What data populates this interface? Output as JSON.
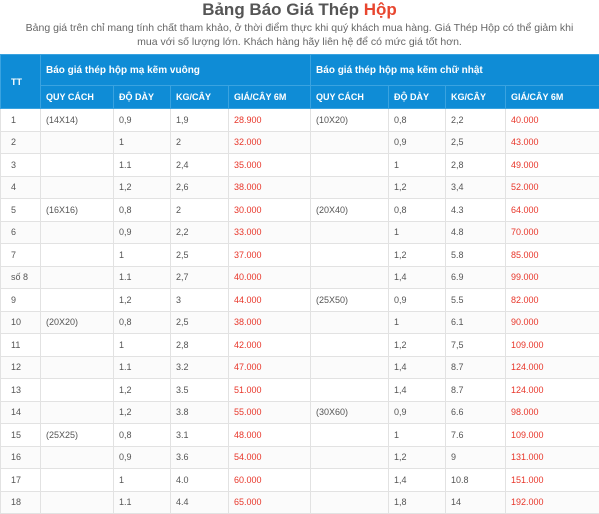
{
  "page": {
    "title_main": "Bảng Báo Giá Thép",
    "title_highlight": "Hộp",
    "note": "Bảng giá trên chỉ mang tính chất tham khảo, ở thời điểm thực khi quý khách mua hàng. Giá Thép Hộp có thể giảm khi mua với số lượng lớn. Khách hàng hãy liên hệ để có mức giá tốt hơn."
  },
  "table": {
    "tt_header": "TT",
    "group_square": "Báo giá thép hộp mạ kẽm vuông",
    "group_rect": "Báo giá thép hộp mạ kẽm chữ nhật",
    "columns": [
      "QUY CÁCH",
      "ĐỘ DÀY",
      "KG/CÂY",
      "GIÁ/CÂY 6M",
      "QUY CÁCH",
      "ĐỘ DÀY",
      "KG/CÂY",
      "GIÁ/CÂY 6M"
    ],
    "rows": [
      [
        "1",
        "(14X14)",
        "0,9",
        "1,9",
        "28.900",
        "(10X20)",
        "0,8",
        "2,2",
        "40.000"
      ],
      [
        "2",
        "",
        "1",
        "2",
        "32.000",
        "",
        "0,9",
        "2,5",
        "43.000"
      ],
      [
        "3",
        "",
        "1.1",
        "2,4",
        "35.000",
        "",
        "1",
        "2,8",
        "49.000"
      ],
      [
        "4",
        "",
        "1,2",
        "2,6",
        "38.000",
        "",
        "1,2",
        "3,4",
        "52.000"
      ],
      [
        "5",
        "(16X16)",
        "0,8",
        "2",
        "30.000",
        "(20X40)",
        "0,8",
        "4.3",
        "64.000"
      ],
      [
        "6",
        "",
        "0,9",
        "2,2",
        "33.000",
        "",
        "1",
        "4.8",
        "70.000"
      ],
      [
        "7",
        "",
        "1",
        "2,5",
        "37.000",
        "",
        "1,2",
        "5.8",
        "85.000"
      ],
      [
        "số 8",
        "",
        "1.1",
        "2,7",
        "40.000",
        "",
        "1,4",
        "6.9",
        "99.000"
      ],
      [
        "9",
        "",
        "1,2",
        "3",
        "44.000",
        "(25X50)",
        "0,9",
        "5.5",
        "82.000"
      ],
      [
        "10",
        "(20X20)",
        "0,8",
        "2,5",
        "38.000",
        "",
        "1",
        "6.1",
        "90.000"
      ],
      [
        "11",
        "",
        "1",
        "2,8",
        "42.000",
        "",
        "1,2",
        "7,5",
        "109.000"
      ],
      [
        "12",
        "",
        "1.1",
        "3.2",
        "47.000",
        "",
        "1,4",
        "8.7",
        "124.000"
      ],
      [
        "13",
        "",
        "1,2",
        "3.5",
        "51.000",
        "",
        "1,4",
        "8.7",
        "124.000"
      ],
      [
        "14",
        "",
        "1,2",
        "3.8",
        "55.000",
        "(30X60)",
        "0,9",
        "6.6",
        "98.000"
      ],
      [
        "15",
        "(25X25)",
        "0,8",
        "3.1",
        "48.000",
        "",
        "1",
        "7.6",
        "109.000"
      ],
      [
        "16",
        "",
        "0,9",
        "3.6",
        "54.000",
        "",
        "1,2",
        "9",
        "131.000"
      ],
      [
        "17",
        "",
        "1",
        "4.0",
        "60.000",
        "",
        "1,4",
        "10.8",
        "151.000"
      ],
      [
        "18",
        "",
        "1.1",
        "4.4",
        "65.000",
        "",
        "1,8",
        "14",
        "192.000"
      ]
    ]
  },
  "colors": {
    "header_bg": "#0f8cd6",
    "price": "#e8362a",
    "title_highlight": "#e8462f"
  }
}
